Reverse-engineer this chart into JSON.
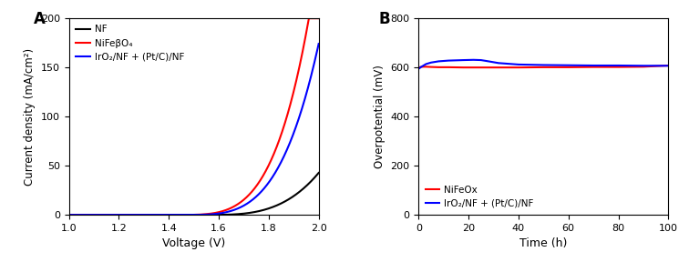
{
  "panel_A": {
    "title": "A",
    "xlabel": "Voltage (V)",
    "ylabel": "Current density (mA/cm²)",
    "xlim": [
      1.0,
      2.0
    ],
    "ylim": [
      0,
      200
    ],
    "xticks": [
      1.0,
      1.2,
      1.4,
      1.6,
      1.8,
      2.0
    ],
    "yticks": [
      0,
      50,
      100,
      150,
      200
    ],
    "legend_labels": [
      "NF",
      "NiFeβO₄",
      "IrO₂/NF + (Pt/C)/NF"
    ],
    "legend_colors": [
      "#000000",
      "#ff0000",
      "#0000ff"
    ]
  },
  "panel_B": {
    "title": "B",
    "xlabel": "Time (h)",
    "ylabel": "Overpotential (mV)",
    "xlim": [
      0,
      100
    ],
    "ylim": [
      0,
      800
    ],
    "xticks": [
      0,
      20,
      40,
      60,
      80,
      100
    ],
    "yticks": [
      0,
      200,
      400,
      600,
      800
    ],
    "legend_labels": [
      "NiFeOx",
      "IrO₂/NF + (Pt/C)/NF"
    ],
    "legend_colors": [
      "#ff0000",
      "#0000ff"
    ]
  }
}
